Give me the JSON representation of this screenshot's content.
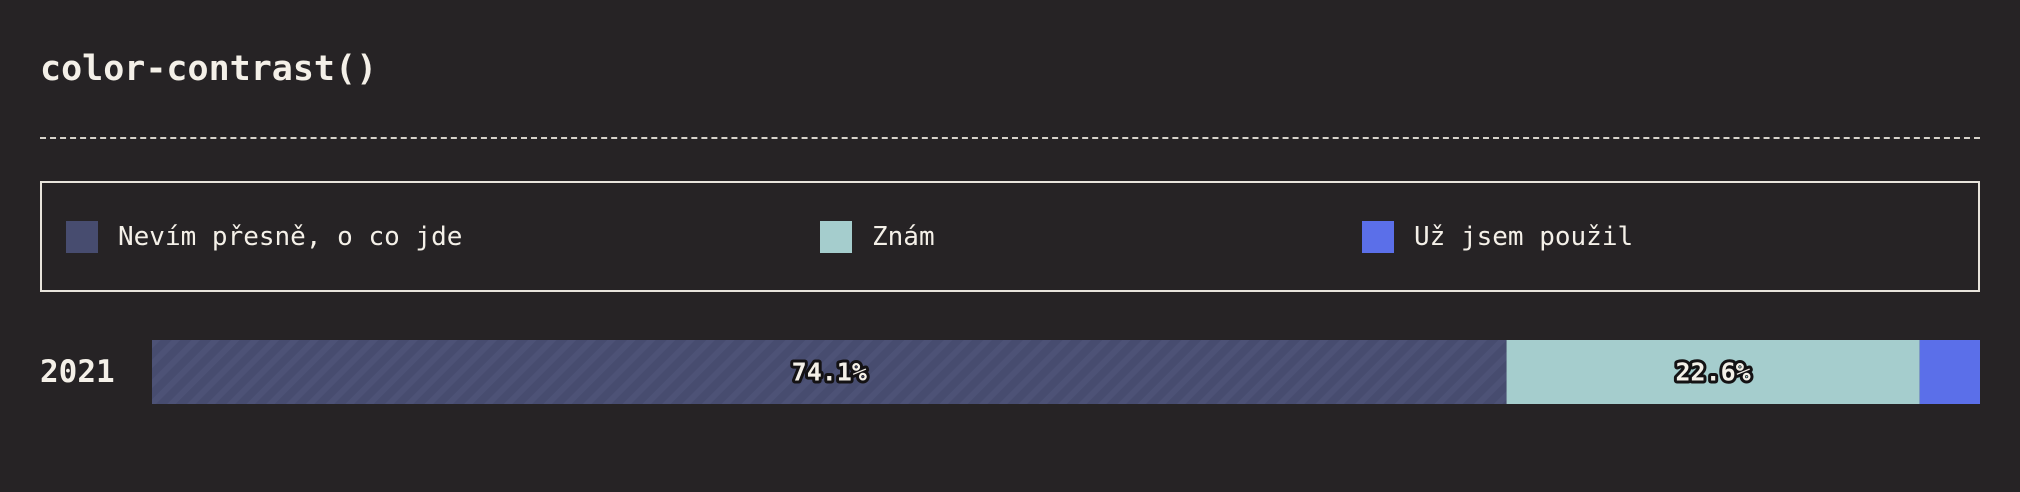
{
  "title": "color-contrast()",
  "legend": [
    {
      "label": "Nevím přesně, o co jde",
      "color": "#474c6f"
    },
    {
      "label": "Znám",
      "color": "#a5cdcd"
    },
    {
      "label": "Už jsem použil",
      "color": "#5b6fe9"
    }
  ],
  "chart_data": {
    "type": "bar",
    "orientation": "horizontal-stacked",
    "categories": [
      "2021"
    ],
    "series": [
      {
        "name": "Nevím přesně, o co jde",
        "values": [
          74.1
        ],
        "label": "74.1%",
        "color": "#474c6f"
      },
      {
        "name": "Znám",
        "values": [
          22.6
        ],
        "label": "22.6%",
        "color": "#a5cdcd"
      },
      {
        "name": "Už jsem použil",
        "values": [
          3.3
        ],
        "label": "",
        "color": "#5b6fe9"
      }
    ],
    "xlim": [
      0,
      100
    ],
    "grid": false,
    "legend_position": "top"
  }
}
